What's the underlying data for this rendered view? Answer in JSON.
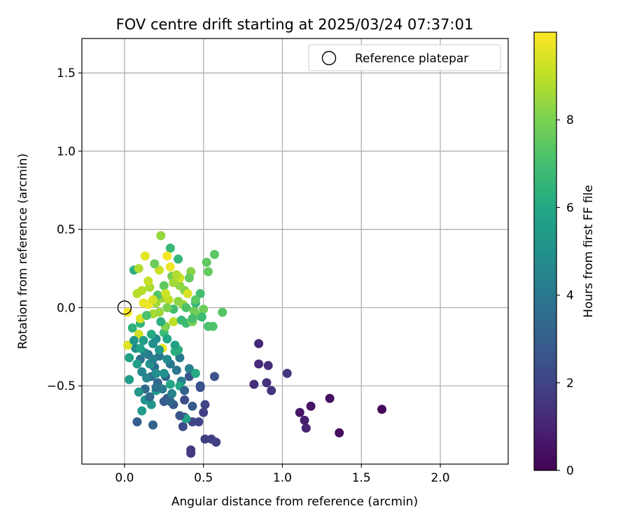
{
  "chart_data": {
    "type": "scatter",
    "title": "FOV centre drift starting at 2025/03/24 07:37:01",
    "xlabel": "Angular distance from reference (arcmin)",
    "ylabel": "Rotation from reference (arcmin)",
    "xlim": [
      -0.27,
      2.43
    ],
    "ylim": [
      -1.0,
      1.72
    ],
    "xticks": [
      0.0,
      0.5,
      1.0,
      1.5,
      2.0
    ],
    "yticks": [
      -0.5,
      0.0,
      0.5,
      1.0,
      1.5
    ],
    "xtick_labels": [
      "0.0",
      "0.5",
      "1.0",
      "1.5",
      "2.0"
    ],
    "ytick_labels": [
      "−0.5",
      "0.0",
      "0.5",
      "1.0",
      "1.5"
    ],
    "grid": true,
    "legend": {
      "position": "top-right",
      "label": "Reference platepar"
    },
    "reference_point": {
      "x": 0.0,
      "y": 0.0
    },
    "colorbar": {
      "label": "Hours from first FF file",
      "colormap": "viridis",
      "range": [
        0,
        10
      ],
      "ticks": [
        0,
        2,
        4,
        6,
        8
      ],
      "tick_labels": [
        "0",
        "2",
        "4",
        "6",
        "8"
      ]
    },
    "points": [
      {
        "x": 1.63,
        "y": -0.65,
        "h": 0.1
      },
      {
        "x": 1.36,
        "y": -0.8,
        "h": 0.3
      },
      {
        "x": 1.3,
        "y": -0.58,
        "h": 0.4
      },
      {
        "x": 1.18,
        "y": -0.63,
        "h": 0.5
      },
      {
        "x": 1.11,
        "y": -0.67,
        "h": 0.6
      },
      {
        "x": 1.14,
        "y": -0.72,
        "h": 0.8
      },
      {
        "x": 1.15,
        "y": -0.77,
        "h": 1.0
      },
      {
        "x": 0.85,
        "y": -0.23,
        "h": 1.1
      },
      {
        "x": 0.85,
        "y": -0.36,
        "h": 1.2
      },
      {
        "x": 0.82,
        "y": -0.49,
        "h": 1.3
      },
      {
        "x": 0.91,
        "y": -0.37,
        "h": 1.3
      },
      {
        "x": 0.9,
        "y": -0.48,
        "h": 1.4
      },
      {
        "x": 0.93,
        "y": -0.53,
        "h": 1.5
      },
      {
        "x": 1.03,
        "y": -0.42,
        "h": 1.6
      },
      {
        "x": 0.42,
        "y": -0.91,
        "h": 1.6
      },
      {
        "x": 0.42,
        "y": -0.93,
        "h": 1.7
      },
      {
        "x": 0.51,
        "y": -0.84,
        "h": 1.8
      },
      {
        "x": 0.55,
        "y": -0.84,
        "h": 1.8
      },
      {
        "x": 0.58,
        "y": -0.86,
        "h": 1.9
      },
      {
        "x": 0.5,
        "y": -0.67,
        "h": 1.9
      },
      {
        "x": 0.51,
        "y": -0.62,
        "h": 2.0
      },
      {
        "x": 0.47,
        "y": -0.73,
        "h": 2.1
      },
      {
        "x": 0.43,
        "y": -0.73,
        "h": 2.1
      },
      {
        "x": 0.38,
        "y": -0.7,
        "h": 2.2
      },
      {
        "x": 0.37,
        "y": -0.76,
        "h": 2.3
      },
      {
        "x": 0.38,
        "y": -0.59,
        "h": 2.3
      },
      {
        "x": 0.48,
        "y": -0.51,
        "h": 2.4
      },
      {
        "x": 0.48,
        "y": -0.5,
        "h": 2.5
      },
      {
        "x": 0.57,
        "y": -0.44,
        "h": 2.5
      },
      {
        "x": 0.41,
        "y": -0.44,
        "h": 2.6
      },
      {
        "x": 0.31,
        "y": -0.62,
        "h": 2.7
      },
      {
        "x": 0.27,
        "y": -0.58,
        "h": 2.8
      },
      {
        "x": 0.25,
        "y": -0.6,
        "h": 2.9
      },
      {
        "x": 0.08,
        "y": -0.73,
        "h": 3.0
      },
      {
        "x": 0.18,
        "y": -0.75,
        "h": 3.1
      },
      {
        "x": 0.26,
        "y": -0.44,
        "h": 3.2
      },
      {
        "x": 0.21,
        "y": -0.48,
        "h": 3.3
      },
      {
        "x": 0.13,
        "y": -0.52,
        "h": 3.4
      },
      {
        "x": 0.17,
        "y": -0.44,
        "h": 3.5
      },
      {
        "x": 0.19,
        "y": -0.38,
        "h": 3.6
      },
      {
        "x": 0.1,
        "y": -0.33,
        "h": 3.7
      },
      {
        "x": 0.15,
        "y": -0.3,
        "h": 3.8
      },
      {
        "x": 0.22,
        "y": -0.31,
        "h": 3.9
      },
      {
        "x": 0.29,
        "y": -0.36,
        "h": 4.0
      },
      {
        "x": 0.35,
        "y": -0.32,
        "h": 4.1
      },
      {
        "x": 0.36,
        "y": -0.47,
        "h": 4.2
      },
      {
        "x": 0.41,
        "y": -0.39,
        "h": 4.3
      },
      {
        "x": 0.3,
        "y": -0.55,
        "h": 4.4
      },
      {
        "x": 0.14,
        "y": -0.45,
        "h": 4.5
      },
      {
        "x": 0.11,
        "y": -0.41,
        "h": 4.6
      },
      {
        "x": 0.07,
        "y": -0.26,
        "h": 4.7
      },
      {
        "x": 0.2,
        "y": -0.2,
        "h": 4.8
      },
      {
        "x": 0.18,
        "y": -0.23,
        "h": 4.9
      },
      {
        "x": 0.25,
        "y": -0.42,
        "h": 5.0
      },
      {
        "x": 0.13,
        "y": -0.59,
        "h": 5.1
      },
      {
        "x": 0.17,
        "y": -0.62,
        "h": 5.2
      },
      {
        "x": 0.09,
        "y": -0.54,
        "h": 5.3
      },
      {
        "x": 0.11,
        "y": -0.66,
        "h": 5.4
      },
      {
        "x": 0.2,
        "y": -0.53,
        "h": 5.4
      },
      {
        "x": 0.03,
        "y": -0.46,
        "h": 5.5
      },
      {
        "x": 0.08,
        "y": -0.36,
        "h": 5.6
      },
      {
        "x": 0.03,
        "y": -0.32,
        "h": 5.7
      },
      {
        "x": 0.39,
        "y": -0.71,
        "h": 5.8
      },
      {
        "x": 0.29,
        "y": -0.49,
        "h": 5.9
      },
      {
        "x": 0.35,
        "y": -0.5,
        "h": 6.0
      },
      {
        "x": 0.45,
        "y": -0.42,
        "h": 6.1
      },
      {
        "x": 0.32,
        "y": -0.28,
        "h": 6.2
      },
      {
        "x": 0.34,
        "y": -0.27,
        "h": 6.3
      },
      {
        "x": 0.06,
        "y": 0.24,
        "h": 6.3
      },
      {
        "x": 0.05,
        "y": -0.13,
        "h": 6.4
      },
      {
        "x": 0.1,
        "y": -0.1,
        "h": 6.5
      },
      {
        "x": 0.34,
        "y": 0.31,
        "h": 6.6
      },
      {
        "x": 0.29,
        "y": 0.38,
        "h": 6.7
      },
      {
        "x": 0.25,
        "y": -0.16,
        "h": 6.8
      },
      {
        "x": 0.39,
        "y": -0.1,
        "h": 6.9
      },
      {
        "x": 0.48,
        "y": 0.09,
        "h": 7.0
      },
      {
        "x": 0.53,
        "y": -0.12,
        "h": 7.1
      },
      {
        "x": 0.56,
        "y": -0.12,
        "h": 7.2
      },
      {
        "x": 0.62,
        "y": -0.03,
        "h": 7.3
      },
      {
        "x": 0.57,
        "y": 0.34,
        "h": 7.4
      },
      {
        "x": 0.52,
        "y": 0.29,
        "h": 7.5
      },
      {
        "x": 0.53,
        "y": 0.23,
        "h": 7.6
      },
      {
        "x": 0.5,
        "y": -0.01,
        "h": 7.7
      },
      {
        "x": 0.44,
        "y": -0.02,
        "h": 7.8
      },
      {
        "x": 0.47,
        "y": -0.05,
        "h": 7.9
      },
      {
        "x": 0.43,
        "y": -0.09,
        "h": 8.0
      },
      {
        "x": 0.38,
        "y": 0.11,
        "h": 8.1
      },
      {
        "x": 0.42,
        "y": 0.23,
        "h": 8.2
      },
      {
        "x": 0.35,
        "y": 0.14,
        "h": 8.3
      },
      {
        "x": 0.23,
        "y": 0.46,
        "h": 8.4
      },
      {
        "x": 0.24,
        "y": 0.06,
        "h": 8.5
      },
      {
        "x": 0.2,
        "y": 0.03,
        "h": 8.6
      },
      {
        "x": 0.16,
        "y": 0.13,
        "h": 8.7
      },
      {
        "x": 0.09,
        "y": 0.25,
        "h": 8.8
      },
      {
        "x": 0.11,
        "y": 0.11,
        "h": 8.9
      },
      {
        "x": 0.31,
        "y": -0.09,
        "h": 9.0
      },
      {
        "x": 0.28,
        "y": 0.05,
        "h": 9.1
      },
      {
        "x": 0.22,
        "y": 0.24,
        "h": 9.2
      },
      {
        "x": 0.35,
        "y": 0.19,
        "h": 9.3
      },
      {
        "x": 0.4,
        "y": 0.09,
        "h": 9.4
      },
      {
        "x": 0.02,
        "y": -0.24,
        "h": 9.5
      },
      {
        "x": 0.13,
        "y": 0.33,
        "h": 9.6
      },
      {
        "x": 0.24,
        "y": -0.26,
        "h": 9.7
      },
      {
        "x": 0.15,
        "y": 0.02,
        "h": 9.8
      },
      {
        "x": 0.27,
        "y": 0.33,
        "h": 9.9
      },
      {
        "x": 0.02,
        "y": -0.03,
        "h": 9.9
      },
      {
        "x": 0.12,
        "y": 0.03,
        "h": 9.7
      },
      {
        "x": 0.1,
        "y": -0.07,
        "h": 9.5
      },
      {
        "x": 0.09,
        "y": -0.17,
        "h": 9.3
      },
      {
        "x": 0.15,
        "y": 0.17,
        "h": 9.1
      },
      {
        "x": 0.08,
        "y": 0.09,
        "h": 8.9
      },
      {
        "x": 0.18,
        "y": -0.04,
        "h": 8.7
      },
      {
        "x": 0.22,
        "y": -0.03,
        "h": 8.5
      },
      {
        "x": 0.34,
        "y": 0.04,
        "h": 8.3
      },
      {
        "x": 0.26,
        "y": -0.12,
        "h": 8.1
      },
      {
        "x": 0.3,
        "y": 0.2,
        "h": 7.9
      },
      {
        "x": 0.19,
        "y": 0.28,
        "h": 7.7
      },
      {
        "x": 0.25,
        "y": 0.14,
        "h": 7.5
      },
      {
        "x": 0.21,
        "y": 0.08,
        "h": 7.3
      },
      {
        "x": 0.14,
        "y": -0.05,
        "h": 7.1
      },
      {
        "x": 0.31,
        "y": -0.01,
        "h": 6.9
      },
      {
        "x": 0.36,
        "y": -0.08,
        "h": 6.7
      },
      {
        "x": 0.45,
        "y": 0.03,
        "h": 6.5
      },
      {
        "x": 0.23,
        "y": -0.09,
        "h": 6.3
      },
      {
        "x": 0.17,
        "y": -0.17,
        "h": 6.1
      },
      {
        "x": 0.27,
        "y": -0.2,
        "h": 5.9
      },
      {
        "x": 0.32,
        "y": -0.24,
        "h": 5.7
      },
      {
        "x": 0.12,
        "y": -0.21,
        "h": 5.5
      },
      {
        "x": 0.22,
        "y": -0.27,
        "h": 5.3
      },
      {
        "x": 0.16,
        "y": -0.36,
        "h": 5.1
      },
      {
        "x": 0.2,
        "y": -0.42,
        "h": 4.9
      },
      {
        "x": 0.27,
        "y": -0.33,
        "h": 4.7
      },
      {
        "x": 0.13,
        "y": -0.29,
        "h": 4.5
      },
      {
        "x": 0.18,
        "y": -0.33,
        "h": 4.3
      },
      {
        "x": 0.24,
        "y": -0.52,
        "h": 4.1
      },
      {
        "x": 0.33,
        "y": -0.4,
        "h": 3.9
      },
      {
        "x": 0.2,
        "y": -0.51,
        "h": 3.7
      },
      {
        "x": 0.16,
        "y": -0.57,
        "h": 3.5
      },
      {
        "x": 0.29,
        "y": -0.6,
        "h": 3.3
      },
      {
        "x": 0.38,
        "y": -0.53,
        "h": 3.1
      },
      {
        "x": 0.43,
        "y": -0.63,
        "h": 2.9
      },
      {
        "x": 0.35,
        "y": -0.69,
        "h": 2.7
      },
      {
        "x": 0.31,
        "y": 0.16,
        "h": 8.6
      },
      {
        "x": 0.37,
        "y": 0.02,
        "h": 8.4
      },
      {
        "x": 0.26,
        "y": 0.09,
        "h": 9.2
      },
      {
        "x": 0.18,
        "y": 0.05,
        "h": 9.4
      },
      {
        "x": 0.29,
        "y": 0.26,
        "h": 9.8
      },
      {
        "x": 0.33,
        "y": 0.21,
        "h": 8.8
      },
      {
        "x": 0.41,
        "y": 0.19,
        "h": 7.6
      },
      {
        "x": 0.45,
        "y": 0.05,
        "h": 7.4
      },
      {
        "x": 0.39,
        "y": 0.0,
        "h": 7.2
      },
      {
        "x": 0.43,
        "y": -0.07,
        "h": 7.0
      },
      {
        "x": 0.49,
        "y": -0.06,
        "h": 6.8
      },
      {
        "x": 0.27,
        "y": 0.0,
        "h": 8.0
      },
      {
        "x": 0.06,
        "y": -0.21,
        "h": 5.2
      },
      {
        "x": 0.1,
        "y": -0.26,
        "h": 5.8
      }
    ]
  }
}
